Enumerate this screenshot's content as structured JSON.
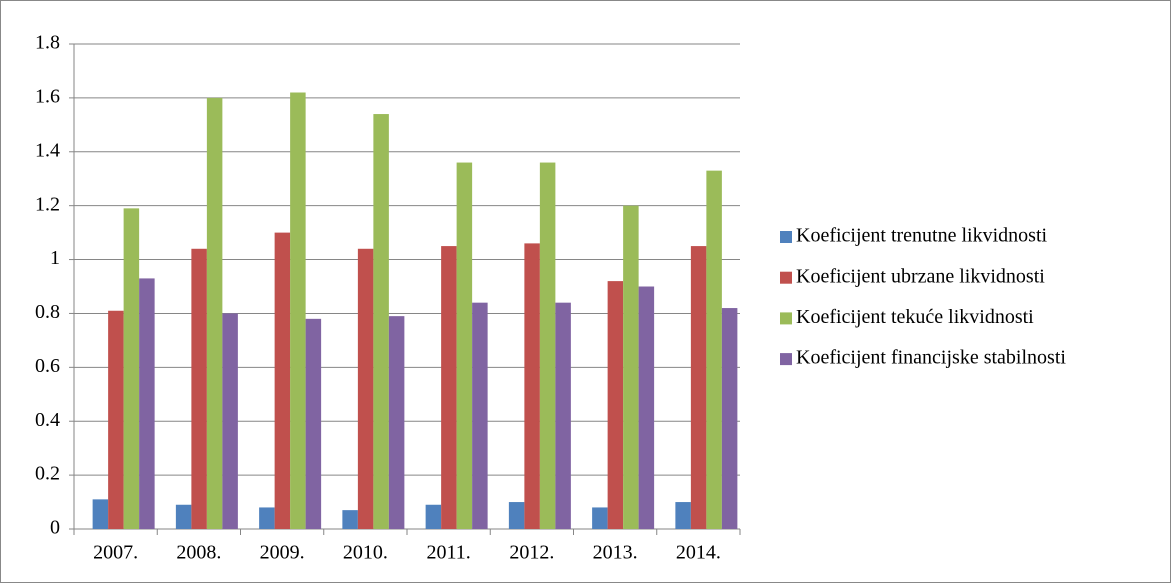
{
  "chart_data": {
    "type": "bar",
    "categories": [
      "2007.",
      "2008.",
      "2009.",
      "2010.",
      "2011.",
      "2012.",
      "2013.",
      "2014."
    ],
    "series": [
      {
        "name": "Koeficijent trenutne likvidnosti",
        "color": "#4f81bd",
        "values": [
          0.11,
          0.09,
          0.08,
          0.07,
          0.09,
          0.1,
          0.08,
          0.1
        ]
      },
      {
        "name": "Koeficijent ubrzane likvidnosti",
        "color": "#c0504d",
        "values": [
          0.81,
          1.04,
          1.1,
          1.04,
          1.05,
          1.06,
          0.92,
          1.05
        ]
      },
      {
        "name": "Koeficijent tekuće likvidnosti",
        "color": "#9bbb59",
        "values": [
          1.19,
          1.6,
          1.62,
          1.54,
          1.36,
          1.36,
          1.2,
          1.33
        ]
      },
      {
        "name": "Koeficijent financijske stabilnosti",
        "color": "#8064a2",
        "values": [
          0.93,
          0.8,
          0.78,
          0.79,
          0.84,
          0.84,
          0.9,
          0.82
        ]
      }
    ],
    "ylim": [
      0,
      1.8
    ],
    "yticks": [
      0,
      0.2,
      0.4,
      0.6,
      0.8,
      1,
      1.2,
      1.4,
      1.6,
      1.8
    ],
    "grid": true,
    "legend_position": "right"
  }
}
